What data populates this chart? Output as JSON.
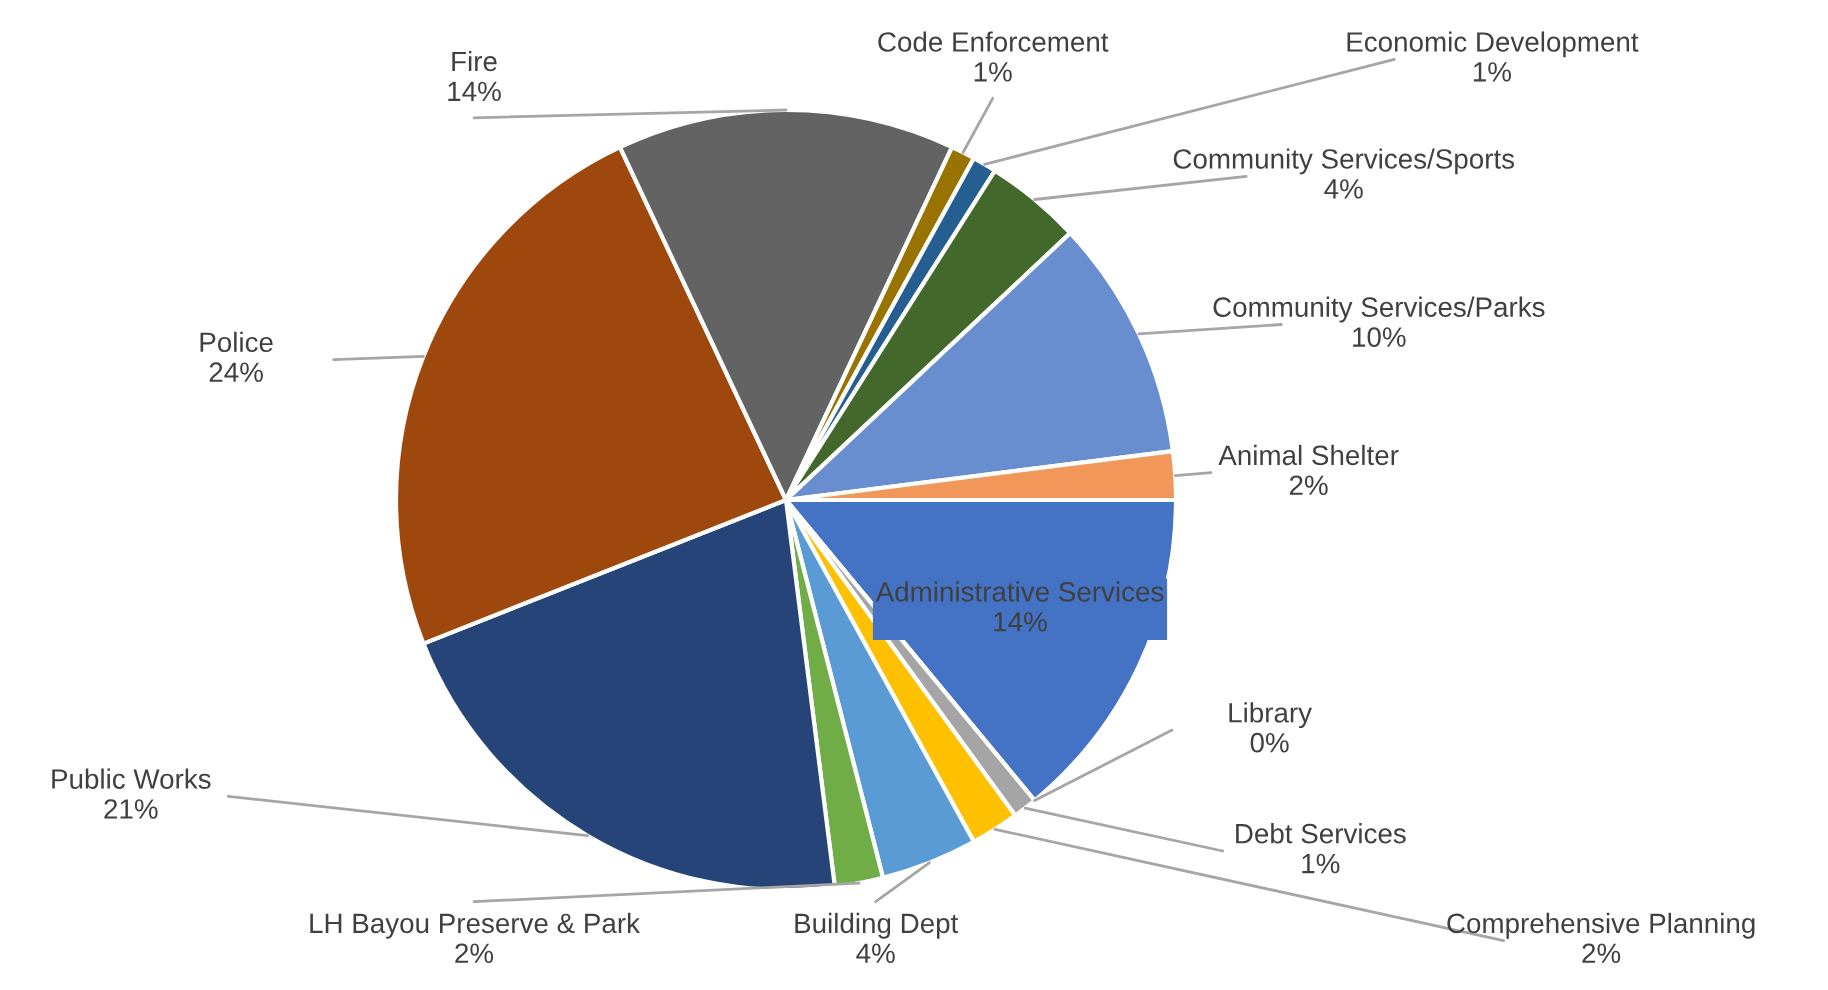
{
  "chart_data": {
    "type": "pie",
    "categories": [
      "Administrative Services",
      "Library",
      "Debt Services",
      "Comprehensive Planning",
      "Building Dept",
      "LH Bayou Preserve & Park",
      "Public Works",
      "Police",
      "Fire",
      "Code Enforcement",
      "Economic Development",
      "Community Services/Sports",
      "Community Services/Parks",
      "Animal Shelter"
    ],
    "values": [
      14,
      0,
      1,
      2,
      4,
      2,
      21,
      24,
      14,
      1,
      1,
      4,
      10,
      2
    ],
    "colors": [
      "#4472c4",
      "#ed7d31",
      "#a5a5a5",
      "#ffc000",
      "#5b9bd5",
      "#70ad47",
      "#264478",
      "#9e480e",
      "#636363",
      "#997300",
      "#255e91",
      "#43682b",
      "#698ed0",
      "#f1975a"
    ],
    "value_labels": [
      "14%",
      "0%",
      "1%",
      "2%",
      "4%",
      "2%",
      "21%",
      "24%",
      "14%",
      "1%",
      "1%",
      "4%",
      "10%",
      "2%"
    ],
    "legend": false
  }
}
